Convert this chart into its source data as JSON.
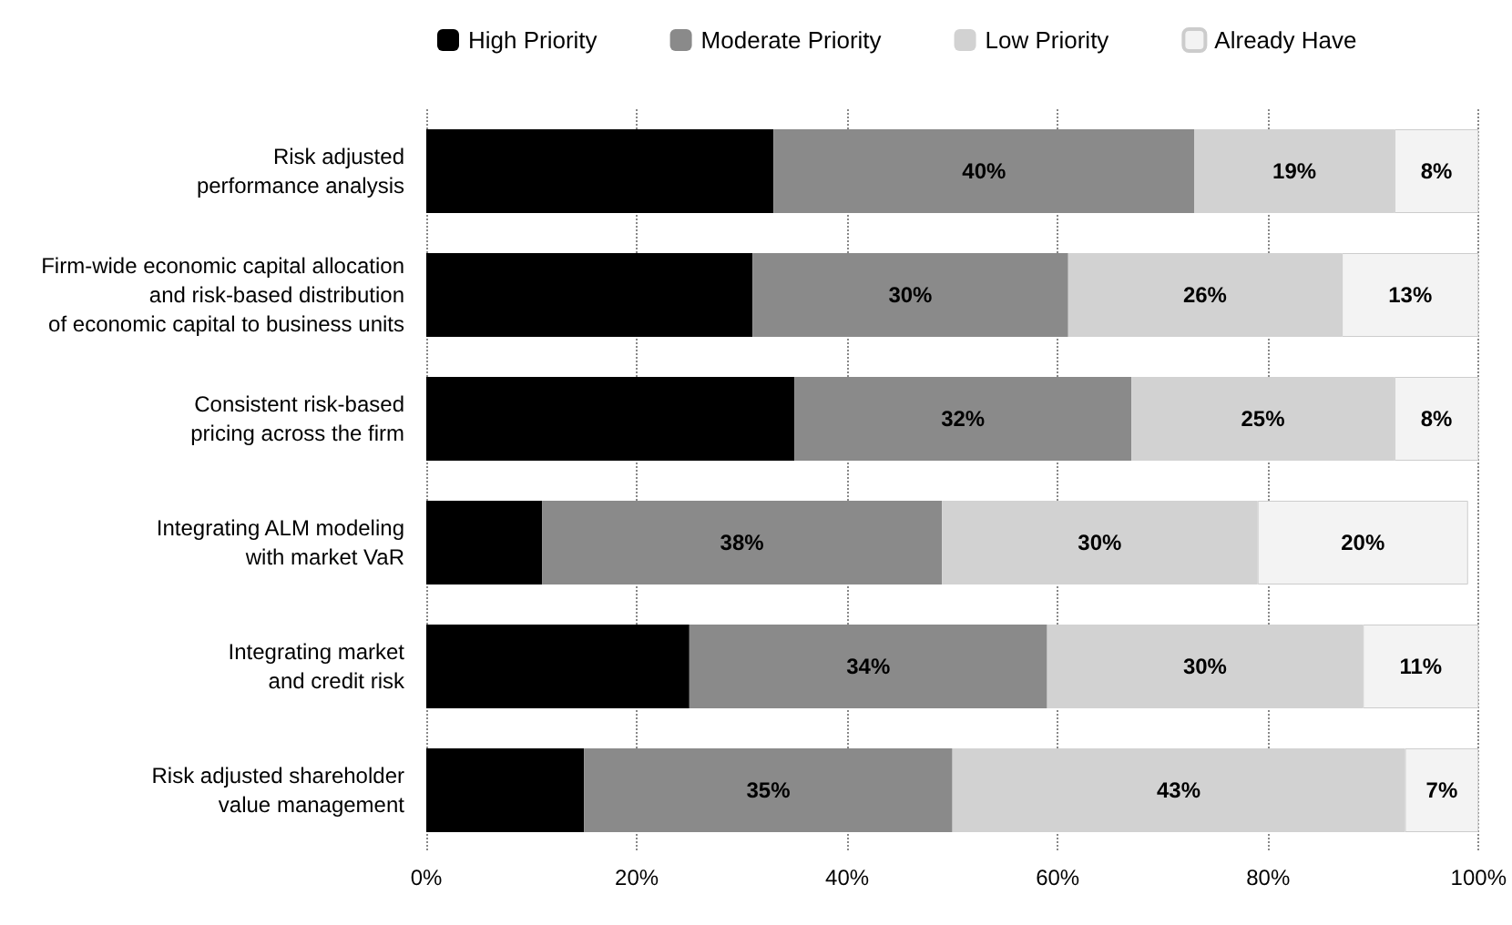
{
  "chart_data": {
    "type": "bar",
    "orientation": "horizontal",
    "stacked": true,
    "categories": [
      "Risk adjusted\nperformance analysis",
      "Firm-wide economic capital allocation\nand risk-based distribution\nof economic capital to business units",
      "Consistent risk-based\npricing across the firm",
      "Integrating ALM modeling\nwith market VaR",
      "Integrating market\nand credit risk",
      "Risk adjusted shareholder\nvalue management"
    ],
    "series": [
      {
        "name": "High Priority",
        "color": "#000000",
        "values": [
          33,
          31,
          35,
          11,
          25,
          15
        ]
      },
      {
        "name": "Moderate Priority",
        "color": "#8a8a8a",
        "values": [
          40,
          30,
          32,
          38,
          34,
          35
        ],
        "value_labels": [
          "40%",
          "30%",
          "32%",
          "38%",
          "34%",
          "35%"
        ]
      },
      {
        "name": "Low Priority",
        "color": "#d2d2d2",
        "values": [
          19,
          26,
          25,
          30,
          30,
          43
        ],
        "value_labels": [
          "19%",
          "26%",
          "25%",
          "30%",
          "30%",
          "43%"
        ]
      },
      {
        "name": "Already Have",
        "color": "#f3f3f3",
        "values": [
          8,
          13,
          8,
          20,
          11,
          7
        ],
        "value_labels": [
          "8%",
          "13%",
          "8%",
          "20%",
          "11%",
          "7%"
        ]
      }
    ],
    "xlim": [
      0,
      100
    ],
    "xticks": [
      {
        "value": 0,
        "label": "0%"
      },
      {
        "value": 20,
        "label": "20%"
      },
      {
        "value": 40,
        "label": "40%"
      },
      {
        "value": 60,
        "label": "60%"
      },
      {
        "value": 80,
        "label": "80%"
      },
      {
        "value": 100,
        "label": "100%"
      }
    ],
    "grid": "x",
    "legend": "top"
  }
}
